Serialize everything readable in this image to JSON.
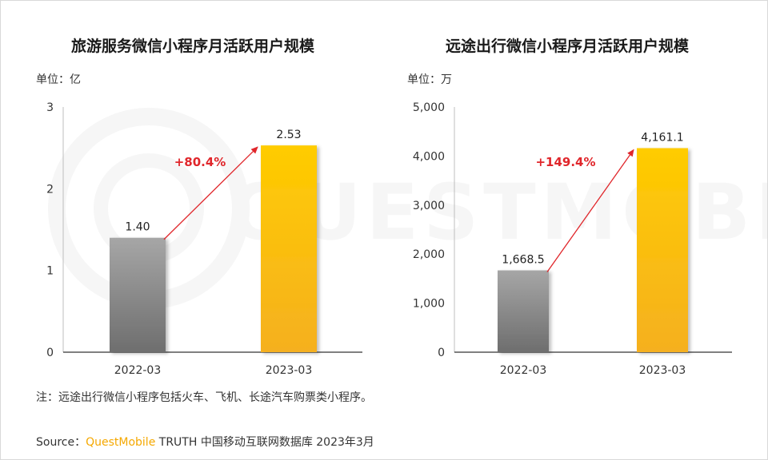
{
  "watermark": "QUESTMOBILE",
  "note": "注：远途出行微信小程序包括火车、飞机、长途汽车购票类小程序。",
  "source": {
    "prefix": "Source：",
    "brand": "QuestMobile",
    "suffix": "TRUTH 中国移动互联网数据库 2023年3月"
  },
  "colors": {
    "gray_top": "#a6a6a6",
    "gray_bottom": "#6e6e6e",
    "gold_top": "#ffcc00",
    "gold_bottom": "#f5b020",
    "arrow": "#e0262b"
  },
  "chart_data": [
    {
      "type": "bar",
      "title": "旅游服务微信小程序月活跃用户规模",
      "unit": "单位：亿",
      "categories": [
        "2022-03",
        "2023-03"
      ],
      "values": [
        1.4,
        2.53
      ],
      "value_labels": [
        "1.40",
        "2.53"
      ],
      "ylim": [
        0,
        3
      ],
      "yticks": [
        0,
        1,
        2,
        3
      ],
      "ytick_labels": [
        "0",
        "1",
        "2",
        "3"
      ],
      "growth": "+80.4%"
    },
    {
      "type": "bar",
      "title": "远途出行微信小程序月活跃用户规模",
      "unit": "单位：万",
      "categories": [
        "2022-03",
        "2023-03"
      ],
      "values": [
        1668.5,
        4161.1
      ],
      "value_labels": [
        "1,668.5",
        "4,161.1"
      ],
      "ylim": [
        0,
        5000
      ],
      "yticks": [
        0,
        1000,
        2000,
        3000,
        4000,
        5000
      ],
      "ytick_labels": [
        "0",
        "1,000",
        "2,000",
        "3,000",
        "4,000",
        "5,000"
      ],
      "growth": "+149.4%"
    }
  ]
}
